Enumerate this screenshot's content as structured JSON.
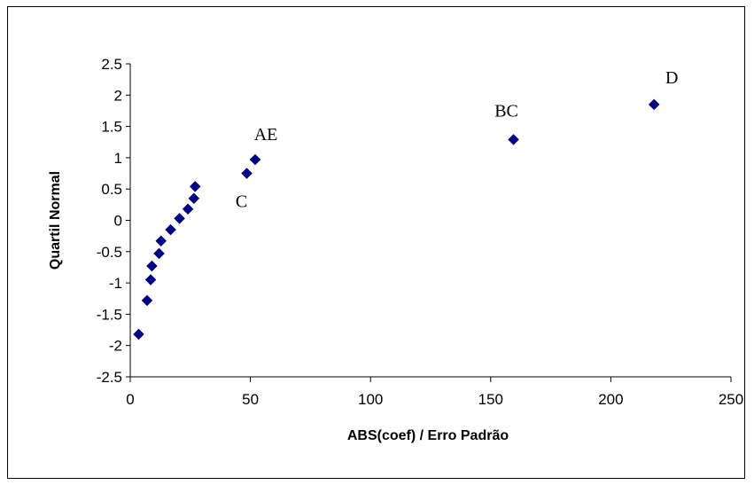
{
  "chart_data": {
    "type": "scatter",
    "title": "",
    "xlabel": "ABS(coef) / Erro Padrão",
    "ylabel": "Quartil Normal",
    "xlim": [
      0,
      250
    ],
    "ylim": [
      -2.5,
      2.5
    ],
    "x_ticks": [
      "0",
      "50",
      "100",
      "150",
      "200",
      "250"
    ],
    "y_ticks": [
      "2.5",
      "2",
      "1.5",
      "1",
      "0.5",
      "0",
      "-0.5",
      "-1",
      "-1.5",
      "-2",
      "-2.5"
    ],
    "grid": false,
    "legend": "none",
    "marker": "diamond",
    "color": "#000080",
    "series": [
      {
        "points": [
          {
            "x": 3.5,
            "y": -1.82,
            "label": ""
          },
          {
            "x": 7.0,
            "y": -1.28,
            "label": ""
          },
          {
            "x": 8.5,
            "y": -0.95,
            "label": ""
          },
          {
            "x": 9.0,
            "y": -0.73,
            "label": ""
          },
          {
            "x": 12.0,
            "y": -0.53,
            "label": ""
          },
          {
            "x": 12.8,
            "y": -0.33,
            "label": ""
          },
          {
            "x": 16.8,
            "y": -0.15,
            "label": ""
          },
          {
            "x": 20.5,
            "y": 0.03,
            "label": ""
          },
          {
            "x": 24.0,
            "y": 0.18,
            "label": ""
          },
          {
            "x": 26.5,
            "y": 0.35,
            "label": ""
          },
          {
            "x": 27.0,
            "y": 0.54,
            "label": ""
          },
          {
            "x": 48.5,
            "y": 0.75,
            "label": "C"
          },
          {
            "x": 52.0,
            "y": 0.97,
            "label": "AE"
          },
          {
            "x": 159.5,
            "y": 1.29,
            "label": "BC"
          },
          {
            "x": 218.0,
            "y": 1.85,
            "label": "D"
          }
        ]
      }
    ]
  }
}
